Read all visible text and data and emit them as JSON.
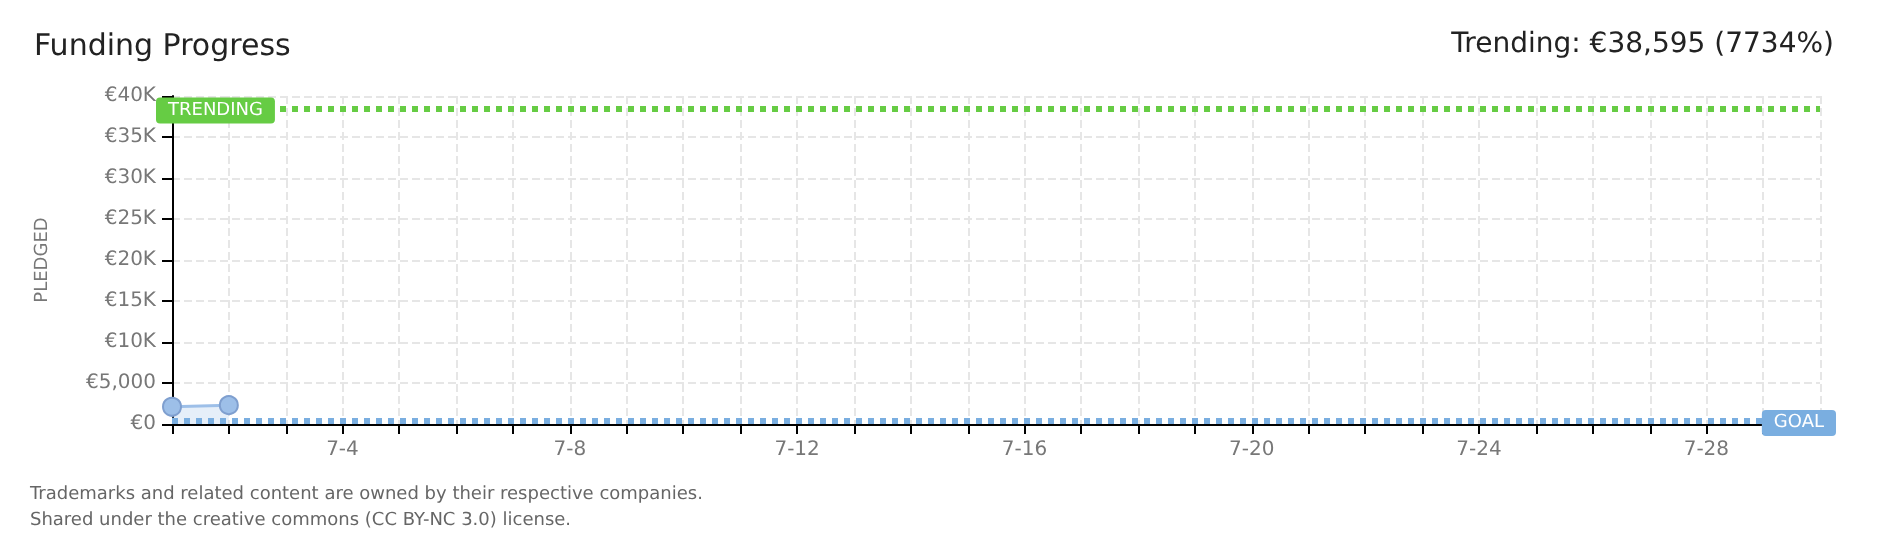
{
  "chart_data": {
    "type": "area",
    "title": "Funding Progress",
    "subtitle": "Trending: €38,595 (7734%)",
    "ylabel": "PLEDGED",
    "x": [
      "--07-01",
      "--07-02"
    ],
    "series": [
      {
        "color": "#9dbfe8",
        "values": [
          2100,
          2300
        ]
      }
    ],
    "marker": "circle",
    "xlim": [
      "--07-01",
      "--07-30"
    ],
    "xticks": [
      {
        "value": "--07-01",
        "label": null
      },
      {
        "value": "--07-02",
        "label": null
      },
      {
        "value": "--07-03",
        "label": null
      },
      {
        "value": "--07-04",
        "label": "7-4"
      },
      {
        "value": "--07-05",
        "label": null
      },
      {
        "value": "--07-06",
        "label": null
      },
      {
        "value": "--07-07",
        "label": null
      },
      {
        "value": "--07-08",
        "label": "7-8"
      },
      {
        "value": "--07-09",
        "label": null
      },
      {
        "value": "--07-10",
        "label": null
      },
      {
        "value": "--07-11",
        "label": null
      },
      {
        "value": "--07-12",
        "label": "7-12"
      },
      {
        "value": "--07-13",
        "label": null
      },
      {
        "value": "--07-14",
        "label": null
      },
      {
        "value": "--07-15",
        "label": null
      },
      {
        "value": "--07-16",
        "label": "7-16"
      },
      {
        "value": "--07-17",
        "label": null
      },
      {
        "value": "--07-18",
        "label": null
      },
      {
        "value": "--07-19",
        "label": null
      },
      {
        "value": "--07-20",
        "label": "7-20"
      },
      {
        "value": "--07-21",
        "label": null
      },
      {
        "value": "--07-22",
        "label": null
      },
      {
        "value": "--07-23",
        "label": null
      },
      {
        "value": "--07-24",
        "label": "7-24"
      },
      {
        "value": "--07-25",
        "label": null
      },
      {
        "value": "--07-26",
        "label": null
      },
      {
        "value": "--07-27",
        "label": null
      },
      {
        "value": "--07-28",
        "label": "7-28"
      },
      {
        "value": "--07-29",
        "label": null
      },
      {
        "value": "--07-30",
        "label": null
      }
    ],
    "ylim": [
      0,
      40000
    ],
    "yticks": [
      {
        "value": 0,
        "label": "€0"
      },
      {
        "value": 5000,
        "label": "€5,000"
      },
      {
        "value": 10000,
        "label": "€10K"
      },
      {
        "value": 15000,
        "label": "€15K"
      },
      {
        "value": 20000,
        "label": "€20K"
      },
      {
        "value": 25000,
        "label": "€25K"
      },
      {
        "value": 30000,
        "label": "€30K"
      },
      {
        "value": 35000,
        "label": "€35K"
      },
      {
        "value": 40000,
        "label": "€40K"
      }
    ],
    "grid": true,
    "ref_lines": [
      {
        "axis": "y",
        "value": 38595,
        "label": "TRENDING",
        "color": "#66cc44",
        "line_style": "dotted"
      },
      {
        "axis": "y",
        "value": 499,
        "label": "GOAL",
        "color": "#7aaee0",
        "line_style": "dotted"
      }
    ],
    "annotations": [
      "Trademarks and related content are owned by their respective companies.",
      "Shared under the creative commons (CC BY-NC 3.0) license."
    ]
  }
}
